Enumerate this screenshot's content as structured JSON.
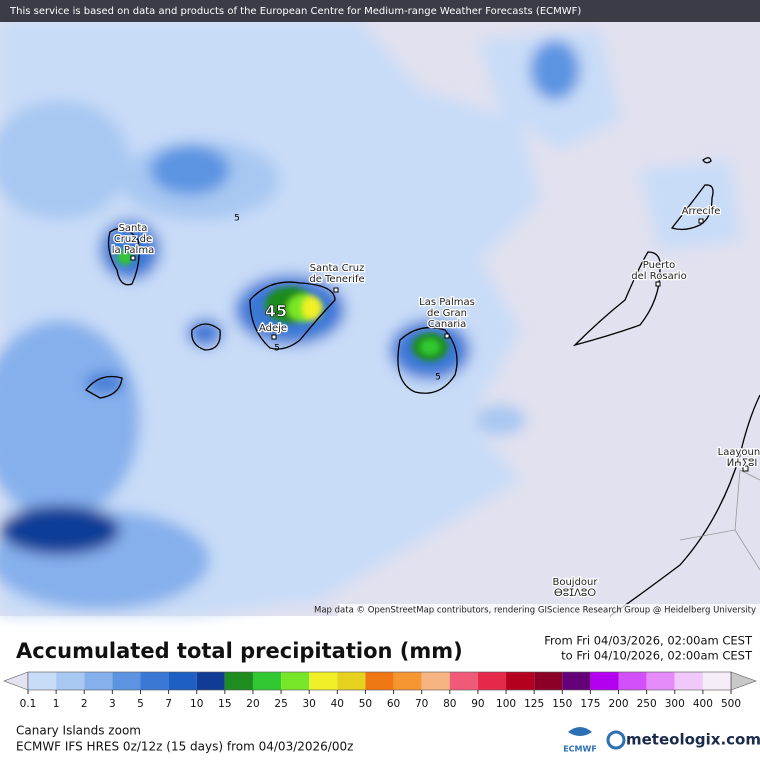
{
  "banner": "This service is based on data and products of the European Centre for Medium-range Weather Forecasts (ECMWF)",
  "attribution": "Map data © OpenStreetMap contributors, rendering GIScience Research Group @ Heidelberg University",
  "max_value": 45,
  "contour_labels": [
    "5",
    "5",
    "5"
  ],
  "places": [
    {
      "lines": [
        "Santa",
        "Cruz de",
        "la Palma"
      ]
    },
    {
      "lines": [
        "Santa Cruz",
        "de Tenerife"
      ]
    },
    {
      "lines": [
        "Adeje"
      ]
    },
    {
      "lines": [
        "Las Palmas",
        "de Gran",
        "Canaria"
      ]
    },
    {
      "lines": [
        "Puerto",
        "del Rosario"
      ]
    },
    {
      "lines": [
        "Arrecife"
      ]
    },
    {
      "lines": [
        "Laayoune",
        "ⵍⵄⵢⵓⵏ"
      ]
    },
    {
      "lines": [
        "Boujdour",
        "ⴱⵓⵊⴷⵓⵔ"
      ]
    }
  ],
  "legend": {
    "title": "Accumulated total precipitation (mm)",
    "from": "From Fri 04/03/2026, 02:00am CEST",
    "to": "to Fri 04/10/2026, 02:00am CEST",
    "levels": [
      0.1,
      1,
      2,
      3,
      5,
      7,
      10,
      15,
      20,
      25,
      30,
      40,
      50,
      60,
      70,
      80,
      90,
      100,
      125,
      150,
      175,
      200,
      250,
      300,
      400,
      500
    ],
    "colors": [
      "#e2e2f0",
      "#c8dcf8",
      "#a8c8f2",
      "#86b0ec",
      "#5c94e2",
      "#3a78d6",
      "#1e5fc4",
      "#103c96",
      "#1e8c1e",
      "#32c832",
      "#78e628",
      "#f0f028",
      "#e6d21e",
      "#f07814",
      "#f59632",
      "#f5b482",
      "#f05a78",
      "#e6284b",
      "#b4001e",
      "#8c0028",
      "#640078",
      "#b400f0",
      "#d250fa",
      "#e68cfa",
      "#f0c8fa",
      "#f5eef8",
      "#c8c8c8"
    ]
  },
  "footer": {
    "region": "Canary Islands zoom",
    "model": "ECMWF IFS HRES 0z/12z (15 days) from 04/03/2026/00z",
    "ecmwf_logo": "ECMWF",
    "brand": "meteologix.com"
  }
}
